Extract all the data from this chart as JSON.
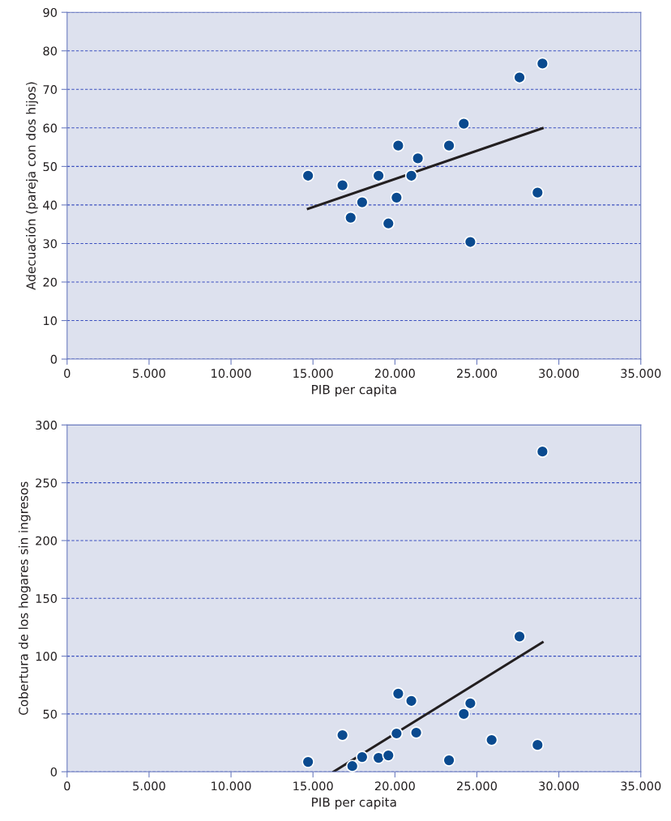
{
  "chart_data": [
    {
      "type": "scatter",
      "xlabel": "PIB per capita",
      "ylabel": "Adecuación (pareja con dos hijos)",
      "xlim": [
        0,
        35000
      ],
      "ylim": [
        0,
        90
      ],
      "xticks": [
        0,
        {
          "value": 5000,
          "label": "5.000"
        },
        {
          "value": 10000,
          "label": "10.000"
        },
        {
          "value": 15000,
          "label": "15.000"
        },
        {
          "value": 20000,
          "label": "20.000"
        },
        {
          "value": 25000,
          "label": "25.000"
        },
        {
          "value": 30000,
          "label": "30.000"
        },
        {
          "value": 35000,
          "label": "35.000"
        }
      ],
      "yticks": [
        0,
        10,
        20,
        30,
        40,
        50,
        60,
        70,
        80,
        90
      ],
      "grid": "y",
      "series": [
        {
          "marker": "circle",
          "color": "#0a4a8f",
          "x": [
            14700,
            16800,
            17300,
            18000,
            19000,
            19600,
            20100,
            20200,
            21000,
            21400,
            23300,
            24200,
            24600,
            27600,
            28700,
            29000
          ],
          "values": [
            47.6,
            45.1,
            36.7,
            40.7,
            47.6,
            35.2,
            41.9,
            55.4,
            47.6,
            52.1,
            55.4,
            61.1,
            30.4,
            73.1,
            43.2,
            76.7
          ]
        },
        {
          "type": "line",
          "marker": "none",
          "color": "#231f20",
          "x": [
            14700,
            29000
          ],
          "values": [
            39.0,
            59.9
          ]
        }
      ]
    },
    {
      "type": "scatter",
      "xlabel": "PIB per capita",
      "ylabel": "Cobertura de los hogares sin ingresos",
      "xlim": [
        0,
        35000
      ],
      "ylim": [
        0,
        300
      ],
      "xticks": [
        0,
        {
          "value": 5000,
          "label": "5.000"
        },
        {
          "value": 10000,
          "label": "10.000"
        },
        {
          "value": 15000,
          "label": "15.000"
        },
        {
          "value": 20000,
          "label": "20.000"
        },
        {
          "value": 25000,
          "label": "25.000"
        },
        {
          "value": 30000,
          "label": "30.000"
        },
        {
          "value": 35000,
          "label": "35.000"
        }
      ],
      "yticks": [
        0,
        50,
        100,
        150,
        200,
        250,
        300
      ],
      "grid": "y",
      "series": [
        {
          "marker": "circle",
          "color": "#0a4a8f",
          "x": [
            14700,
            16800,
            17400,
            18000,
            19000,
            19600,
            20100,
            20200,
            21000,
            21300,
            23300,
            24200,
            24600,
            25900,
            27600,
            28700,
            29000
          ],
          "values": [
            8.5,
            31.7,
            4.9,
            12.7,
            12.0,
            14.1,
            33.1,
            67.6,
            61.3,
            33.8,
            9.9,
            50,
            59.2,
            27.5,
            117,
            23.2,
            277
          ]
        },
        {
          "type": "line",
          "marker": "none",
          "color": "#231f20",
          "x": [
            16250,
            29000
          ],
          "values": [
            0,
            112
          ]
        }
      ]
    }
  ]
}
